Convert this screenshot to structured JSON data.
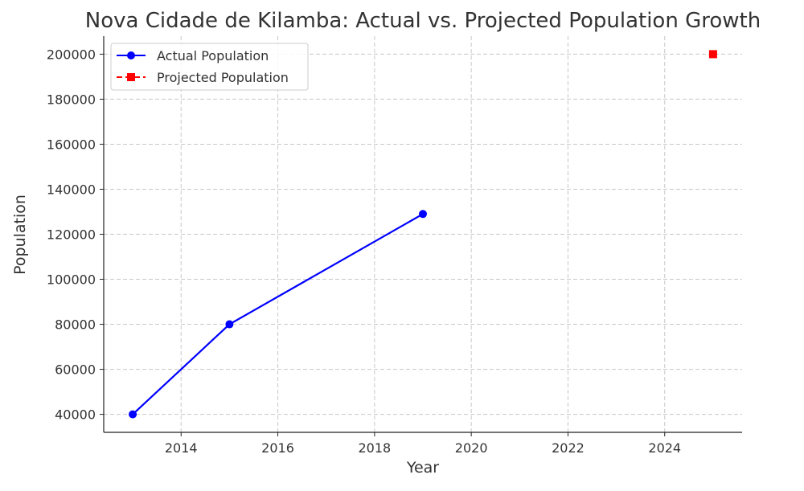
{
  "chart_data": {
    "type": "line",
    "title": "Nova Cidade de Kilamba: Actual vs. Projected Population Growth",
    "xlabel": "Year",
    "ylabel": "Population",
    "xlim": [
      2012.4,
      2025.6
    ],
    "ylim": [
      32000,
      208000
    ],
    "xticks": [
      2014,
      2016,
      2018,
      2020,
      2022,
      2024
    ],
    "yticks": [
      40000,
      60000,
      80000,
      100000,
      120000,
      140000,
      160000,
      180000,
      200000
    ],
    "grid": true,
    "legend_position": "top-left",
    "series": [
      {
        "name": "Actual Population",
        "color": "#0000ff",
        "style": "solid",
        "marker": "circle",
        "x": [
          2013,
          2015,
          2019
        ],
        "y": [
          40000,
          80000,
          129000
        ]
      },
      {
        "name": "Projected Population",
        "color": "#ff0000",
        "style": "dashed",
        "marker": "square",
        "x": [
          2025
        ],
        "y": [
          200000
        ]
      }
    ]
  }
}
